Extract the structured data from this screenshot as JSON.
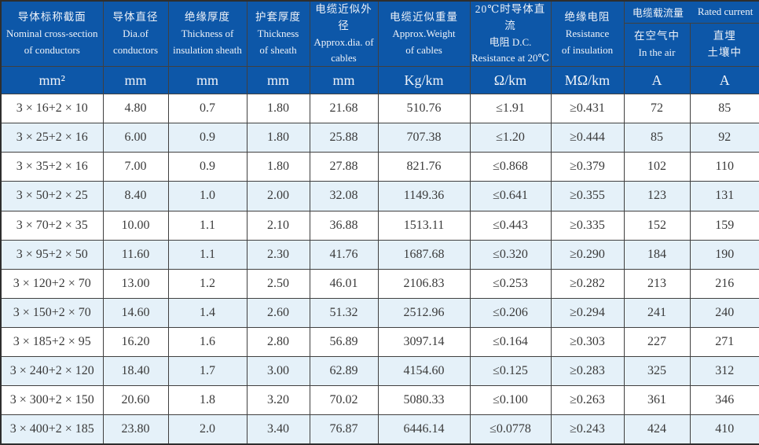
{
  "colors": {
    "header_bg": "#0d57a8",
    "header_text": "#eef2f8",
    "stripe_bg": "#e5f1f9",
    "border": "#404040",
    "body_text": "#3a3a3a"
  },
  "table": {
    "columns": [
      {
        "zh": "导体标称截面",
        "en1": "Nominal cross-section",
        "en2": "of conductors"
      },
      {
        "zh": "导体直径",
        "en1": "Dia.of",
        "en2": "conductors"
      },
      {
        "zh": "绝缘厚度",
        "en1": "Thickness of",
        "en2": "insulation sheath"
      },
      {
        "zh": "护套厚度",
        "en1": "Thickness",
        "en2": "of sheath"
      },
      {
        "zh": "电缆近似外径",
        "en1": "Approx.dia. of",
        "en2": "cables"
      },
      {
        "zh": "电缆近似重量",
        "en1": "Approx.Weight",
        "en2": "of cables"
      },
      {
        "zh": "20℃时导体直流",
        "en1": "电阻 D.C.",
        "en2": "Resistance at 20℃"
      },
      {
        "zh": "绝缘电阻",
        "en1": "Resistance",
        "en2": "of insulation"
      }
    ],
    "rated_group": {
      "zh": "电缆载流量",
      "en": "Rated current"
    },
    "sub_columns": [
      {
        "line1": "在空气中",
        "line2": "In the air"
      },
      {
        "line1": "直埋",
        "line2": "土壤中"
      }
    ],
    "units": [
      "mm²",
      "mm",
      "mm",
      "mm",
      "mm",
      "Kg/km",
      "Ω/km",
      "MΩ/km",
      "A",
      "A"
    ],
    "rows": [
      [
        "3 × 16+2 × 10",
        "4.80",
        "0.7",
        "1.80",
        "21.68",
        "510.76",
        "≤1.91",
        "≥0.431",
        "72",
        "85"
      ],
      [
        "3 × 25+2 × 16",
        "6.00",
        "0.9",
        "1.80",
        "25.88",
        "707.38",
        "≤1.20",
        "≥0.444",
        "85",
        "92"
      ],
      [
        "3 × 35+2 × 16",
        "7.00",
        "0.9",
        "1.80",
        "27.88",
        "821.76",
        "≤0.868",
        "≥0.379",
        "102",
        "110"
      ],
      [
        "3 × 50+2 × 25",
        "8.40",
        "1.0",
        "2.00",
        "32.08",
        "1149.36",
        "≤0.641",
        "≥0.355",
        "123",
        "131"
      ],
      [
        "3 × 70+2 × 35",
        "10.00",
        "1.1",
        "2.10",
        "36.88",
        "1513.11",
        "≤0.443",
        "≥0.335",
        "152",
        "159"
      ],
      [
        "3 × 95+2 × 50",
        "11.60",
        "1.1",
        "2.30",
        "41.76",
        "1687.68",
        "≤0.320",
        "≥0.290",
        "184",
        "190"
      ],
      [
        "3 × 120+2 × 70",
        "13.00",
        "1.2",
        "2.50",
        "46.01",
        "2106.83",
        "≤0.253",
        "≥0.282",
        "213",
        "216"
      ],
      [
        "3 × 150+2 × 70",
        "14.60",
        "1.4",
        "2.60",
        "51.32",
        "2512.96",
        "≤0.206",
        "≥0.294",
        "241",
        "240"
      ],
      [
        "3 × 185+2 × 95",
        "16.20",
        "1.6",
        "2.80",
        "56.89",
        "3097.14",
        "≤0.164",
        "≥0.303",
        "227",
        "271"
      ],
      [
        "3 × 240+2 × 120",
        "18.40",
        "1.7",
        "3.00",
        "62.89",
        "4154.60",
        "≤0.125",
        "≥0.283",
        "325",
        "312"
      ],
      [
        "3 × 300+2 × 150",
        "20.60",
        "1.8",
        "3.20",
        "70.02",
        "5080.33",
        "≤0.100",
        "≥0.263",
        "361",
        "346"
      ],
      [
        "3 × 400+2 × 185",
        "23.80",
        "2.0",
        "3.40",
        "76.87",
        "6446.14",
        "≤0.0778",
        "≥0.243",
        "424",
        "410"
      ]
    ]
  }
}
